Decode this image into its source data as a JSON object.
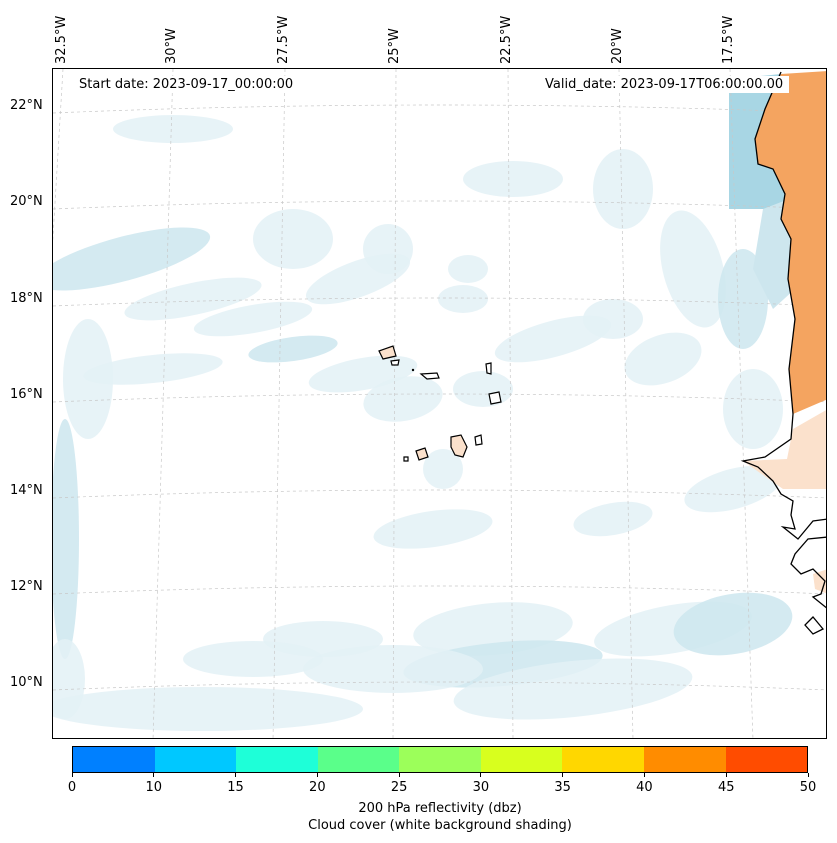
{
  "map": {
    "start_label": "Start date: 2023-09-17_00:00:00",
    "valid_label": "Valid_date: 2023-09-17T06:00:00.00",
    "longitude_labels": [
      "32.5°W",
      "30°W",
      "27.5°W",
      "25°W",
      "22.5°W",
      "20°W",
      "17.5°W"
    ],
    "latitude_labels": [
      "22°N",
      "20°N",
      "18°N",
      "16°N",
      "14°N",
      "12°N",
      "10°N"
    ],
    "colors": {
      "cloud_light": "#e3f1f6",
      "cloud_medium": "#cde6ee",
      "cloud_blue": "#a8d6e4",
      "land_hot": "#f4a460",
      "land_warm": "#fbe1cc",
      "coast": "#000000",
      "grid": "#c8c8c8"
    }
  },
  "colorbar": {
    "title_line1": "200 hPa reflectivity (dbz)",
    "title_line2": "Cloud cover (white background shading)",
    "ticks": [
      "0",
      "10",
      "15",
      "20",
      "25",
      "30",
      "35",
      "40",
      "45",
      "50"
    ],
    "colors": [
      "#0080ff",
      "#00c8ff",
      "#1effd8",
      "#5aff8a",
      "#9cff5a",
      "#d8ff1e",
      "#ffd700",
      "#ff8c00",
      "#ff4c00"
    ]
  }
}
